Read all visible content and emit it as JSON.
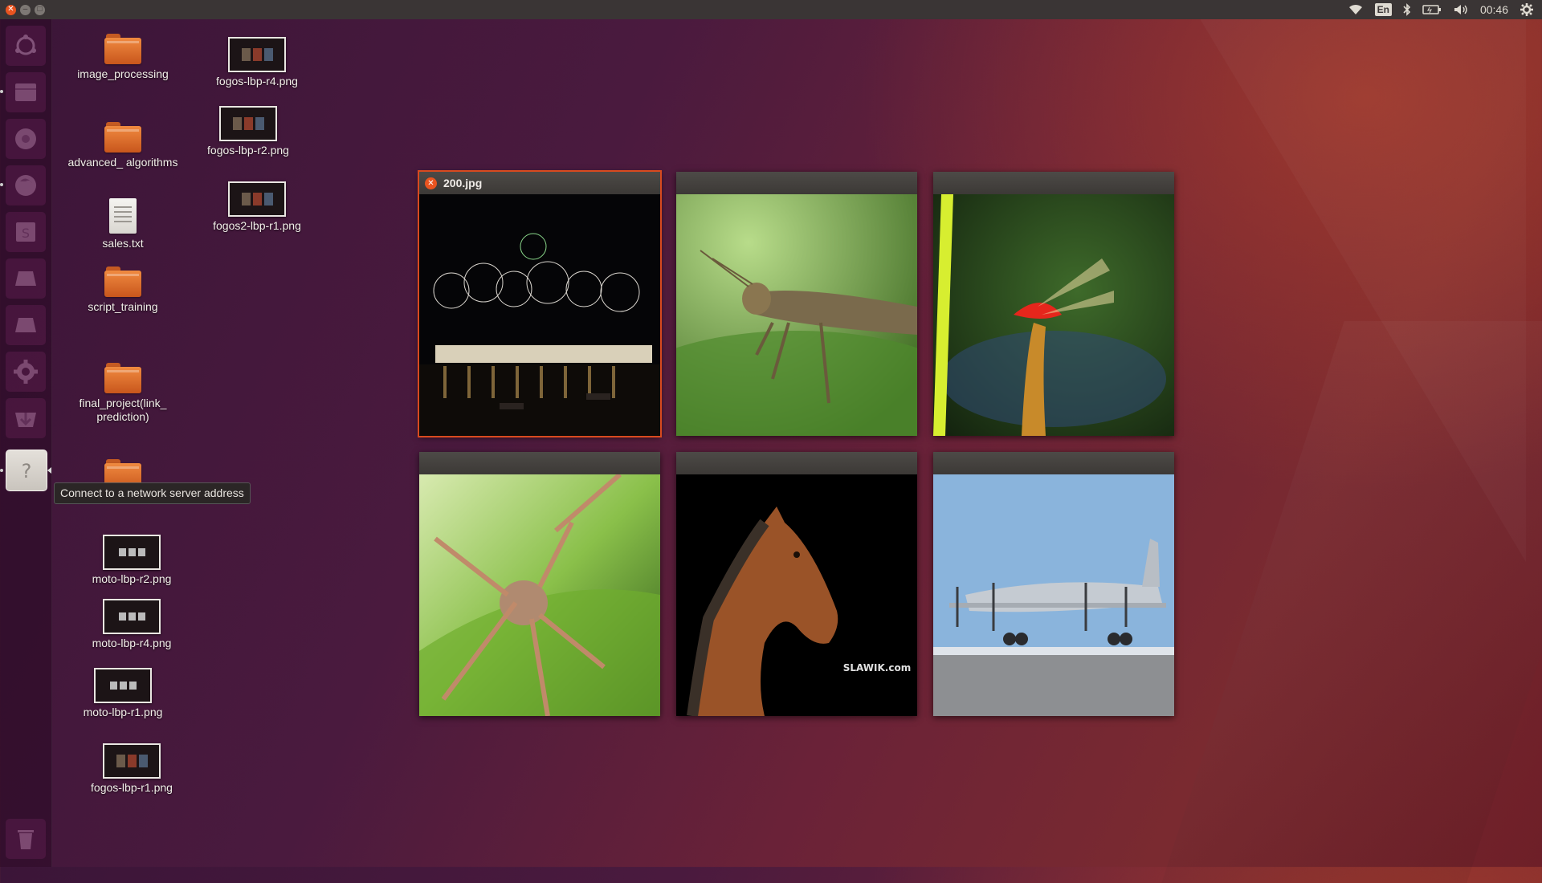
{
  "top_panel": {
    "window_buttons": [
      "close",
      "minimize",
      "maximize"
    ],
    "keyboard_layout": "En",
    "clock": "00:46",
    "icons": [
      "wifi-icon",
      "keyboard-layout-icon",
      "bluetooth-icon",
      "battery-icon",
      "volume-icon",
      "settings-gear-icon"
    ]
  },
  "launcher": {
    "items": [
      {
        "name": "dash-home"
      },
      {
        "name": "files"
      },
      {
        "name": "chromium"
      },
      {
        "name": "firefox"
      },
      {
        "name": "libreoffice-impress"
      },
      {
        "name": "screen-a"
      },
      {
        "name": "screen-b"
      },
      {
        "name": "system-settings"
      },
      {
        "name": "software-updater"
      },
      {
        "name": "connect-to-server",
        "active": true
      },
      {
        "name": "trash"
      }
    ],
    "tooltip": "Connect to a network server address"
  },
  "desktop": {
    "icons": [
      {
        "label": "image_processing",
        "kind": "folder"
      },
      {
        "label": "advanced_ algorithms",
        "kind": "folder"
      },
      {
        "label": "sales.txt",
        "kind": "text"
      },
      {
        "label": "script_training",
        "kind": "folder"
      },
      {
        "label": "final_project(link_ prediction)",
        "kind": "folder"
      },
      {
        "label": "",
        "kind": "folder"
      },
      {
        "label": "moto-lbp-r2.png",
        "kind": "image"
      },
      {
        "label": "moto-lbp-r4.png",
        "kind": "image"
      },
      {
        "label": "moto-lbp-r1.png",
        "kind": "image"
      },
      {
        "label": "fogos-lbp-r1.png",
        "kind": "image"
      },
      {
        "label": "fogos-lbp-r4.png",
        "kind": "image"
      },
      {
        "label": "fogos-lbp-r2.png",
        "kind": "image"
      },
      {
        "label": "fogos2-lbp-r1.png",
        "kind": "image"
      }
    ]
  },
  "spread": {
    "windows": [
      {
        "title": "200.jpg",
        "active": true,
        "subject": "fireworks"
      },
      {
        "title": "",
        "active": false,
        "subject": "grasshopper"
      },
      {
        "title": "",
        "active": false,
        "subject": "dragonfly"
      },
      {
        "title": "",
        "active": false,
        "subject": "insect"
      },
      {
        "title": "",
        "active": false,
        "subject": "horse",
        "watermark": "SLAWIK.com"
      },
      {
        "title": "",
        "active": false,
        "subject": "airplane"
      }
    ]
  }
}
